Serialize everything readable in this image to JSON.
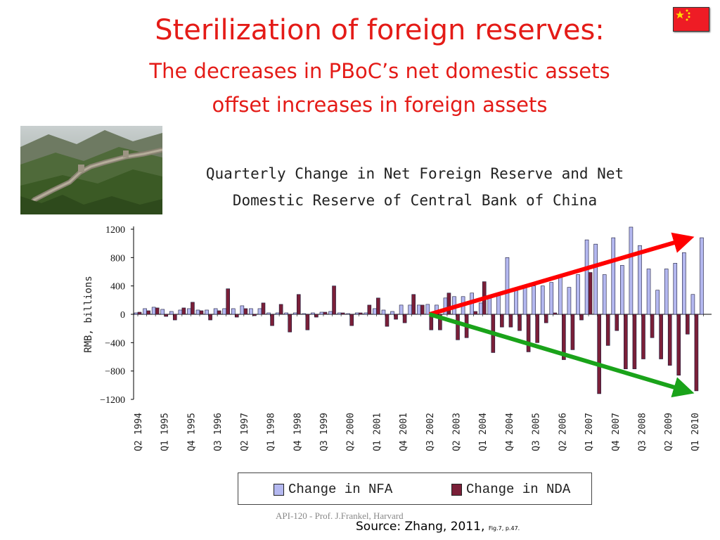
{
  "slide": {
    "title_line1": "Sterilization of foreign reserves:",
    "title_line2": "The decreases in PBoC’s net domestic assets",
    "title_line3": "offset increases in foreign assets",
    "footer_prof": "API-120 -  Prof. J.Frankel, Harvard",
    "source_main": "Source:  Zhang, 2011, ",
    "source_small": "Fig.7, p.47."
  },
  "colors": {
    "title": "#e41b17",
    "nfa": "#b4b8f0",
    "nda": "#7a1f38",
    "arrow_up": "#ff0000",
    "arrow_down": "#1aa31a"
  },
  "icons": {
    "flag": "china-flag-icon",
    "photo": "great-wall-photo"
  },
  "chart_data": {
    "type": "bar",
    "title_line1": "Quarterly Change in Net Foreign Reserve and Net",
    "title_line2": "Domestic Reserve of Central Bank of China",
    "ylabel": "RMB, billions",
    "ylim": [
      -1200,
      1200
    ],
    "yticks": [
      1200,
      800,
      400,
      0,
      -400,
      -800,
      -1200
    ],
    "ytick_labels": [
      "1200",
      "800",
      "400",
      "0",
      "−400",
      "−800",
      "−1200"
    ],
    "xtick_labels": [
      "Q2 1994",
      "Q1 1995",
      "Q4 1995",
      "Q3 1996",
      "Q2 1997",
      "Q1 1998",
      "Q4 1998",
      "Q3 1999",
      "Q2 2000",
      "Q1 2001",
      "Q4 2001",
      "Q3 2002",
      "Q2 2003",
      "Q1 2004",
      "Q4 2004",
      "Q3 2005",
      "Q2 2006",
      "Q1 2007",
      "Q4 2007",
      "Q3 2008",
      "Q2 2009",
      "Q1 2010"
    ],
    "categories": [
      "Q2 1994",
      "Q3 1994",
      "Q4 1994",
      "Q1 1995",
      "Q2 1995",
      "Q3 1995",
      "Q4 1995",
      "Q1 1996",
      "Q2 1996",
      "Q3 1996",
      "Q4 1996",
      "Q1 1997",
      "Q2 1997",
      "Q3 1997",
      "Q4 1997",
      "Q1 1998",
      "Q2 1998",
      "Q3 1998",
      "Q4 1998",
      "Q1 1999",
      "Q2 1999",
      "Q3 1999",
      "Q4 1999",
      "Q1 2000",
      "Q2 2000",
      "Q3 2000",
      "Q4 2000",
      "Q1 2001",
      "Q2 2001",
      "Q3 2001",
      "Q4 2001",
      "Q1 2002",
      "Q2 2002",
      "Q3 2002",
      "Q4 2002",
      "Q1 2003",
      "Q2 2003",
      "Q3 2003",
      "Q4 2003",
      "Q1 2004",
      "Q2 2004",
      "Q3 2004",
      "Q4 2004",
      "Q1 2005",
      "Q2 2005",
      "Q3 2005",
      "Q4 2005",
      "Q1 2006",
      "Q2 2006",
      "Q3 2006",
      "Q4 2006",
      "Q1 2007",
      "Q2 2007",
      "Q3 2007",
      "Q4 2007",
      "Q1 2008",
      "Q2 2008",
      "Q3 2008",
      "Q4 2008",
      "Q1 2009",
      "Q2 2009",
      "Q3 2009",
      "Q4 2009",
      "Q1 2010",
      "Q2 2010"
    ],
    "series": [
      {
        "name": "Change in NFA",
        "values": [
          20,
          80,
          100,
          70,
          40,
          60,
          80,
          60,
          60,
          80,
          80,
          80,
          120,
          80,
          80,
          20,
          20,
          20,
          20,
          10,
          20,
          30,
          40,
          20,
          10,
          20,
          20,
          80,
          60,
          40,
          130,
          130,
          130,
          140,
          130,
          230,
          250,
          250,
          300,
          160,
          260,
          300,
          800,
          360,
          400,
          400,
          400,
          450,
          520,
          380,
          560,
          1050,
          990,
          560,
          1080,
          690,
          1230,
          970,
          640,
          340,
          640,
          720,
          870,
          280,
          1080
        ]
      },
      {
        "name": "Change in NDA",
        "values": [
          30,
          50,
          90,
          -30,
          -80,
          90,
          170,
          50,
          -80,
          50,
          360,
          -40,
          80,
          -20,
          160,
          -160,
          140,
          -250,
          280,
          -220,
          -40,
          30,
          400,
          20,
          -160,
          20,
          130,
          230,
          -170,
          -70,
          -120,
          280,
          130,
          -220,
          -220,
          300,
          -360,
          -330,
          40,
          460,
          -540,
          -180,
          -180,
          -230,
          -530,
          -400,
          -120,
          20,
          -640,
          -500,
          -80,
          590,
          -1120,
          -440,
          -230,
          -770,
          -770,
          -630,
          -330,
          -630,
          -720,
          -860,
          -280,
          -1080,
          0
        ]
      }
    ],
    "legend_position": "bottom",
    "annotations": [
      {
        "type": "arrow",
        "color": "red",
        "from": [
          "Q3 2002",
          0
        ],
        "to": [
          "Q1 2010",
          1060
        ]
      },
      {
        "type": "arrow",
        "color": "green",
        "from": [
          "Q3 2002",
          0
        ],
        "to": [
          "Q1 2010",
          -1080
        ]
      }
    ]
  }
}
